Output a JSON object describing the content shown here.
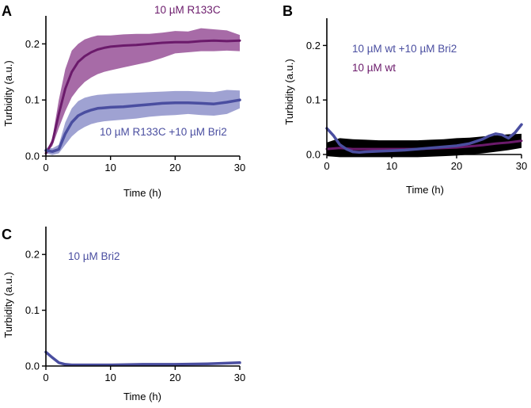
{
  "colors": {
    "purple": "#6b1a6b",
    "purple_band": "#8a3a8a",
    "blue": "#4a4ea0",
    "blue_band": "#7a7ec0",
    "black": "#000000"
  },
  "chart_data": [
    {
      "panel": "A",
      "type": "line",
      "xlabel": "Time (h)",
      "ylabel": "Turbidity (a.u.)",
      "xlim": [
        0,
        30
      ],
      "ylim": [
        0,
        0.25
      ],
      "xticks": [
        0,
        10,
        20,
        30
      ],
      "yticks": [
        0.0,
        0.1,
        0.2
      ],
      "xtick_labels": [
        "0",
        "10",
        "20",
        "30"
      ],
      "ytick_labels": [
        "0.0",
        "0.1",
        "0.2"
      ],
      "series": [
        {
          "name": "10 µM R133C",
          "color_key": "purple",
          "x": [
            0,
            1,
            2,
            3,
            4,
            5,
            6,
            7,
            8,
            9,
            10,
            12,
            14,
            16,
            18,
            20,
            22,
            24,
            26,
            28,
            30
          ],
          "y": [
            0.005,
            0.025,
            0.075,
            0.12,
            0.15,
            0.168,
            0.178,
            0.185,
            0.19,
            0.193,
            0.195,
            0.197,
            0.198,
            0.2,
            0.202,
            0.203,
            0.203,
            0.205,
            0.206,
            0.205,
            0.206
          ],
          "lower": [
            0.005,
            0.018,
            0.05,
            0.08,
            0.105,
            0.12,
            0.132,
            0.14,
            0.146,
            0.15,
            0.153,
            0.158,
            0.163,
            0.168,
            0.175,
            0.183,
            0.185,
            0.187,
            0.187,
            0.188,
            0.187
          ],
          "upper": [
            0.005,
            0.032,
            0.1,
            0.155,
            0.188,
            0.2,
            0.208,
            0.212,
            0.215,
            0.215,
            0.215,
            0.217,
            0.218,
            0.218,
            0.22,
            0.223,
            0.222,
            0.228,
            0.226,
            0.224,
            0.216
          ]
        },
        {
          "name": "10 µM R133C +10 µM Bri2",
          "color_key": "blue",
          "x": [
            0,
            1,
            2,
            3,
            4,
            5,
            6,
            7,
            8,
            9,
            10,
            12,
            14,
            16,
            18,
            20,
            22,
            24,
            26,
            28,
            30
          ],
          "y": [
            0.01,
            0.008,
            0.012,
            0.04,
            0.06,
            0.072,
            0.078,
            0.082,
            0.085,
            0.086,
            0.087,
            0.088,
            0.09,
            0.092,
            0.094,
            0.095,
            0.095,
            0.094,
            0.093,
            0.096,
            0.1
          ],
          "lower": [
            0.005,
            0.002,
            0.005,
            0.02,
            0.035,
            0.045,
            0.052,
            0.057,
            0.06,
            0.062,
            0.063,
            0.065,
            0.067,
            0.07,
            0.072,
            0.073,
            0.075,
            0.073,
            0.072,
            0.075,
            0.085
          ],
          "upper": [
            0.015,
            0.014,
            0.02,
            0.06,
            0.085,
            0.098,
            0.104,
            0.107,
            0.109,
            0.11,
            0.111,
            0.112,
            0.113,
            0.114,
            0.115,
            0.116,
            0.116,
            0.115,
            0.114,
            0.118,
            0.117
          ]
        }
      ],
      "legend": [
        {
          "text": "10 µM R133C",
          "color_key": "purple"
        },
        {
          "text": "10 µM R133C +10 µM Bri2",
          "color_key": "blue"
        }
      ]
    },
    {
      "panel": "B",
      "type": "line",
      "xlabel": "Time (h)",
      "ylabel": "Turbidity (a.u.)",
      "xlim": [
        0,
        30
      ],
      "ylim": [
        0,
        0.25
      ],
      "xticks": [
        0,
        10,
        20,
        30
      ],
      "yticks": [
        0.0,
        0.1,
        0.2
      ],
      "xtick_labels": [
        "0",
        "10",
        "20",
        "30"
      ],
      "ytick_labels": [
        "0.0",
        "0.1",
        "0.2"
      ],
      "series": [
        {
          "name": "10 µM wt",
          "color_key": "purple",
          "x": [
            0,
            2,
            4,
            6,
            8,
            10,
            12,
            14,
            16,
            18,
            20,
            22,
            24,
            26,
            28,
            30
          ],
          "y": [
            0.01,
            0.012,
            0.01,
            0.01,
            0.01,
            0.01,
            0.01,
            0.01,
            0.011,
            0.012,
            0.013,
            0.015,
            0.017,
            0.02,
            0.022,
            0.025
          ],
          "lower": [
            -0.003,
            -0.005,
            -0.005,
            -0.005,
            -0.005,
            -0.005,
            -0.005,
            -0.005,
            -0.004,
            -0.003,
            -0.002,
            0,
            0.002,
            0.005,
            0.008,
            0.012
          ],
          "upper": [
            0.022,
            0.03,
            0.028,
            0.027,
            0.026,
            0.026,
            0.026,
            0.026,
            0.027,
            0.028,
            0.03,
            0.031,
            0.033,
            0.035,
            0.037,
            0.038
          ]
        },
        {
          "name": "10 µM wt +10 µM Bri2",
          "color_key": "blue",
          "x": [
            0,
            1,
            2,
            3,
            4,
            5,
            6,
            8,
            10,
            12,
            14,
            16,
            18,
            20,
            22,
            24,
            25,
            26,
            27,
            28,
            29,
            30
          ],
          "y": [
            0.048,
            0.035,
            0.018,
            0.01,
            0.005,
            0.004,
            0.005,
            0.006,
            0.007,
            0.008,
            0.01,
            0.012,
            0.014,
            0.016,
            0.02,
            0.028,
            0.034,
            0.038,
            0.036,
            0.03,
            0.04,
            0.055
          ]
        }
      ],
      "legend": [
        {
          "text": "10 µM wt +10 µM Bri2",
          "color_key": "blue"
        },
        {
          "text": "10 µM wt",
          "color_key": "purple"
        }
      ]
    },
    {
      "panel": "C",
      "type": "line",
      "xlabel": "Time (h)",
      "ylabel": "Turbidity (a.u.)",
      "xlim": [
        0,
        30
      ],
      "ylim": [
        0,
        0.25
      ],
      "xticks": [
        0,
        10,
        20,
        30
      ],
      "yticks": [
        0.0,
        0.1,
        0.2
      ],
      "xtick_labels": [
        "0",
        "10",
        "20",
        "30"
      ],
      "ytick_labels": [
        "0.0",
        "0.1",
        "0.2"
      ],
      "series": [
        {
          "name": "10 µM Bri2",
          "color_key": "blue",
          "x": [
            0,
            1,
            2,
            3,
            4,
            6,
            8,
            10,
            15,
            20,
            25,
            30
          ],
          "y": [
            0.025,
            0.015,
            0.006,
            0.003,
            0.002,
            0.002,
            0.002,
            0.002,
            0.003,
            0.003,
            0.004,
            0.006
          ]
        }
      ],
      "legend": [
        {
          "text": "10 µM Bri2",
          "color_key": "blue"
        }
      ]
    }
  ]
}
